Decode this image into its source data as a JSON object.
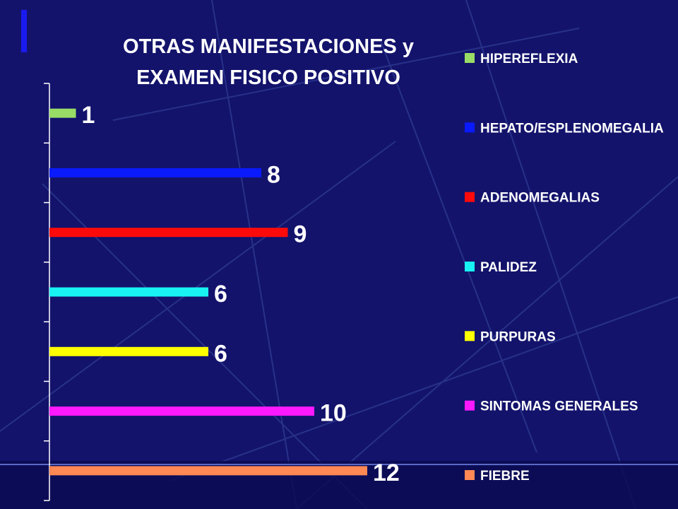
{
  "chart_data": {
    "type": "bar",
    "orientation": "horizontal",
    "title": [
      "OTRAS MANIFESTACIONES  y",
      "EXAMEN FISICO POSITIVO"
    ],
    "categories": [
      "HIPEREFLEXIA",
      "HEPATO/ESPLENOMEGALIA",
      "ADENOMEGALIAS",
      "PALIDEZ",
      "PURPURAS",
      "SINTOMAS GENERALES",
      "FIEBRE"
    ],
    "values": [
      1,
      8,
      9,
      6,
      6,
      10,
      12
    ],
    "colors": [
      "#99dd66",
      "#0a1aff",
      "#ff0a0a",
      "#19f2f2",
      "#ffff00",
      "#ff19ff",
      "#ff8855"
    ],
    "data_labels": [
      "1",
      "8",
      "9",
      "6",
      "6",
      "10",
      "12"
    ],
    "xlim": [
      0,
      12
    ],
    "legend_position": "right",
    "grid": false
  }
}
